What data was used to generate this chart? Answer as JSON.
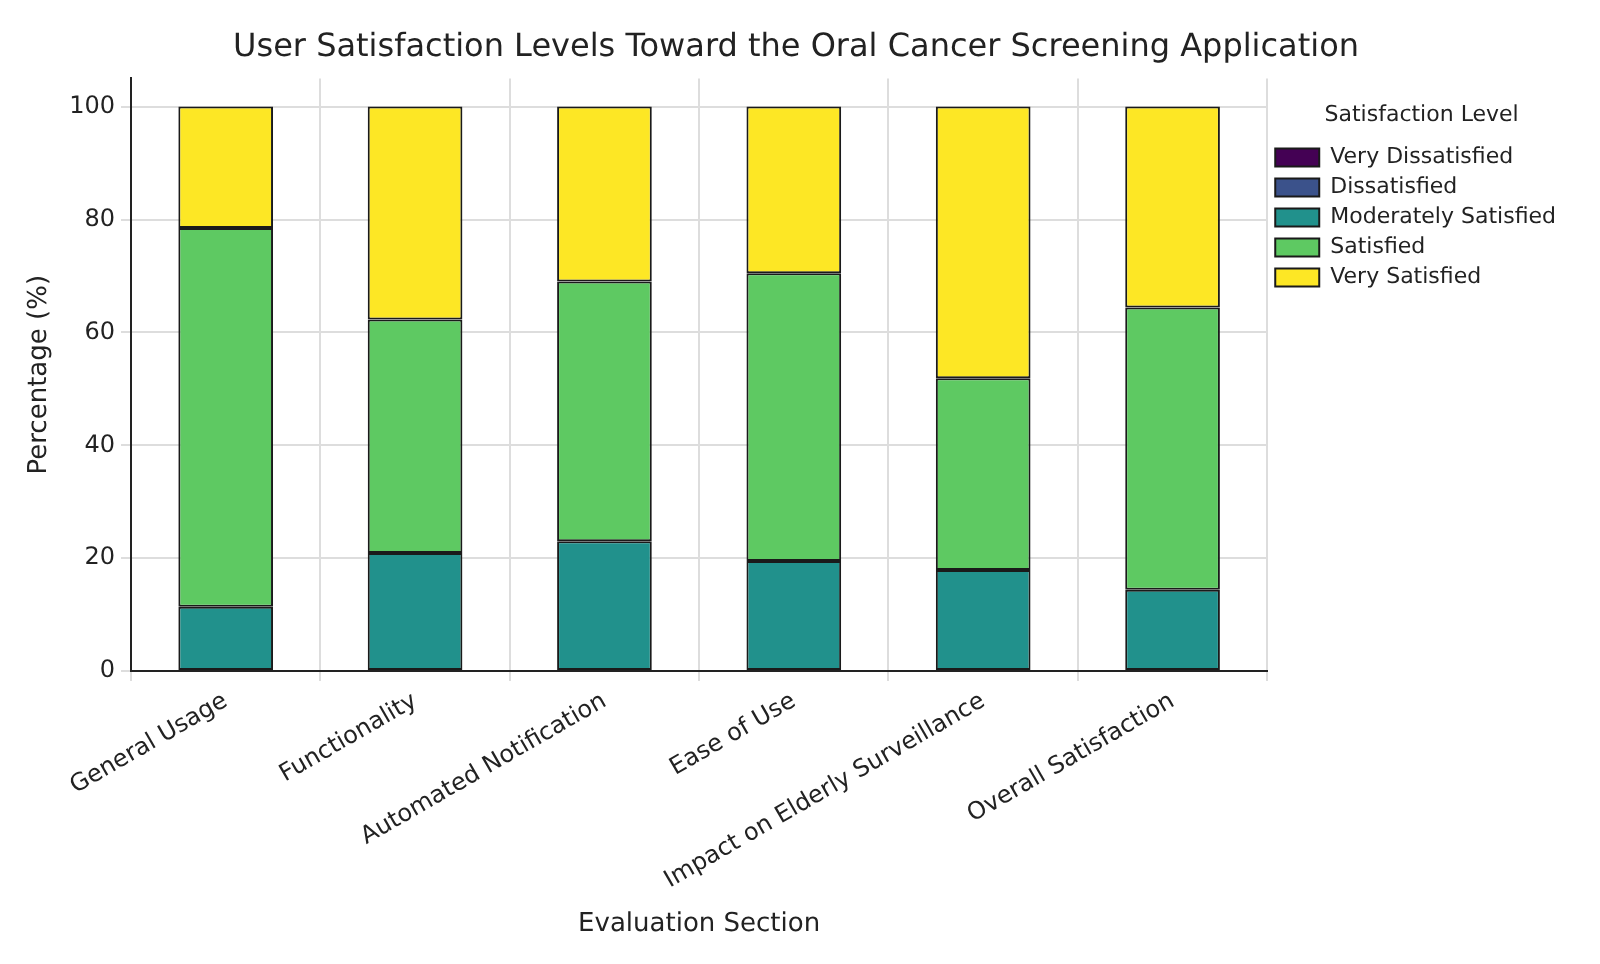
{
  "chart_data": {
    "type": "bar",
    "title": "User Satisfaction Levels Toward the Oral Cancer Screening Application",
    "xlabel": "Evaluation Section",
    "ylabel": "Percentage (%)",
    "legend_title": "Satisfaction Level",
    "categories": [
      "General Usage",
      "Functionality",
      "Automated Notification",
      "Ease of Use",
      "Impact on Elderly Surveillance",
      "Overall Satisfaction"
    ],
    "series": [
      {
        "name": "Very Dissatisfied",
        "color": "#440154",
        "values": [
          0,
          0,
          0,
          0,
          0,
          0
        ]
      },
      {
        "name": "Dissatisfied",
        "color": "#3b528b",
        "values": [
          0,
          0,
          0,
          0,
          0,
          0
        ]
      },
      {
        "name": "Moderately Satisfied",
        "color": "#21918c",
        "values": [
          11.4,
          20.9,
          23.0,
          19.5,
          17.9,
          14.4
        ]
      },
      {
        "name": "Satisfied",
        "color": "#5ec962",
        "values": [
          67.1,
          41.4,
          46.0,
          51.0,
          34.0,
          50.0
        ]
      },
      {
        "name": "Very Satisfied",
        "color": "#fde725",
        "values": [
          21.5,
          37.7,
          31.0,
          29.5,
          48.1,
          35.6
        ]
      }
    ],
    "stacked": true,
    "ylim": [
      0,
      105
    ],
    "yticks": [
      0,
      20,
      40,
      60,
      80,
      100
    ],
    "grid": true,
    "legend": "top right"
  }
}
